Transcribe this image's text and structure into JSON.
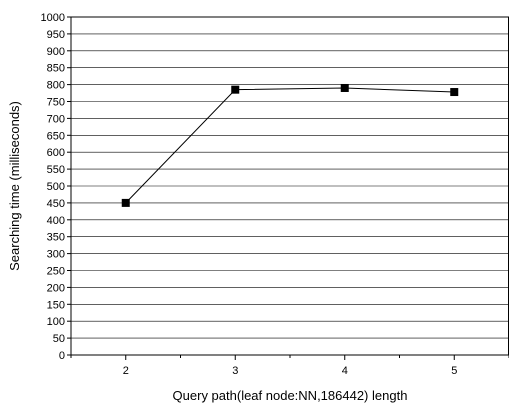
{
  "chart_data": {
    "type": "line",
    "title": "",
    "xlabel": "Query path(leaf node:NN,186442) length",
    "ylabel": "Searching time (milliseconds)",
    "x": [
      2,
      3,
      4,
      5
    ],
    "series": [
      {
        "values": [
          450,
          785,
          790,
          778
        ],
        "marker": "square",
        "color": "#000000"
      }
    ],
    "xlim": [
      1.5,
      5.5
    ],
    "ylim": [
      0,
      1000
    ],
    "xticks": [
      "2",
      "3",
      "4",
      "5"
    ],
    "yticks": [
      "0",
      "50",
      "100",
      "150",
      "200",
      "250",
      "300",
      "350",
      "400",
      "450",
      "500",
      "550",
      "600",
      "650",
      "700",
      "750",
      "800",
      "850",
      "900",
      "950",
      "1000"
    ],
    "grid": "horizontal",
    "legend": "none"
  }
}
